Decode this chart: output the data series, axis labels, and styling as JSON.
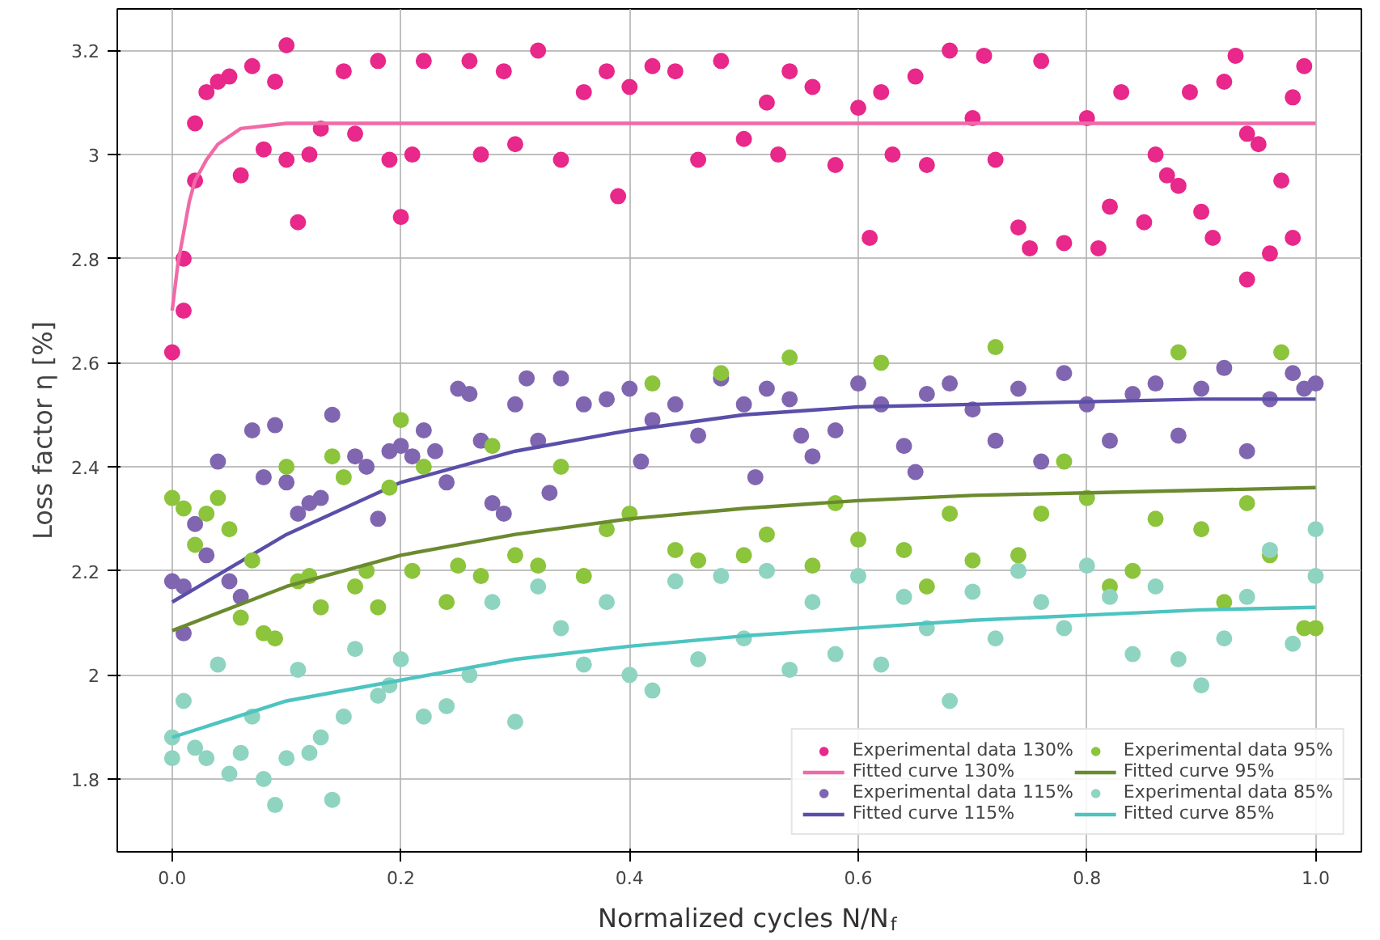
{
  "chart_data": {
    "type": "scatter",
    "xlabel": "Normalized cycles N/N$_{f}$",
    "ylabel": "Loss factor η [%]",
    "xlim": [
      -0.048,
      1.04
    ],
    "ylim": [
      1.66,
      3.28
    ],
    "xticks": [
      {
        "value": 0,
        "label": "0.0"
      },
      0.2,
      0.4,
      0.6,
      0.8,
      {
        "value": 1,
        "label": "1.0"
      }
    ],
    "yticks": [
      1.8,
      2.0,
      2.2,
      2.4,
      2.6,
      2.8,
      3.0,
      3.2
    ],
    "grid": true,
    "legend": "bottom right",
    "series": [
      {
        "name": "Experimental data 130%",
        "marker": "circle",
        "color": "#e8288a",
        "x": [
          0.0,
          0.01,
          0.01,
          0.02,
          0.02,
          0.03,
          0.04,
          0.05,
          0.06,
          0.07,
          0.08,
          0.09,
          0.1,
          0.1,
          0.11,
          0.12,
          0.13,
          0.15,
          0.16,
          0.18,
          0.19,
          0.2,
          0.21,
          0.22,
          0.26,
          0.27,
          0.29,
          0.3,
          0.32,
          0.34,
          0.36,
          0.38,
          0.39,
          0.4,
          0.42,
          0.44,
          0.46,
          0.48,
          0.5,
          0.52,
          0.53,
          0.54,
          0.56,
          0.58,
          0.6,
          0.61,
          0.62,
          0.63,
          0.65,
          0.66,
          0.68,
          0.7,
          0.71,
          0.72,
          0.74,
          0.75,
          0.76,
          0.78,
          0.8,
          0.81,
          0.82,
          0.83,
          0.85,
          0.86,
          0.87,
          0.88,
          0.89,
          0.9,
          0.91,
          0.92,
          0.93,
          0.94,
          0.95,
          0.96,
          0.97,
          0.98,
          0.99,
          0.98,
          0.94
        ],
        "values": [
          2.62,
          2.7,
          2.8,
          2.95,
          3.06,
          3.12,
          3.14,
          3.15,
          2.96,
          3.17,
          3.01,
          3.14,
          3.21,
          2.99,
          2.87,
          3.0,
          3.05,
          3.16,
          3.04,
          3.18,
          2.99,
          2.88,
          3.0,
          3.18,
          3.18,
          3.0,
          3.16,
          3.02,
          3.2,
          2.99,
          3.12,
          3.16,
          2.92,
          3.13,
          3.17,
          3.16,
          2.99,
          3.18,
          3.03,
          3.1,
          3.0,
          3.16,
          3.13,
          2.98,
          3.09,
          2.84,
          3.12,
          3.0,
          3.15,
          2.98,
          3.2,
          3.07,
          3.19,
          2.99,
          2.86,
          2.82,
          3.18,
          2.83,
          3.07,
          2.82,
          2.9,
          3.12,
          2.87,
          3.0,
          2.96,
          2.94,
          3.12,
          2.89,
          2.84,
          3.14,
          3.19,
          3.04,
          3.02,
          2.81,
          2.95,
          3.11,
          3.17,
          2.84,
          2.76
        ]
      },
      {
        "name": "Fitted curve 130%",
        "type": "line",
        "color": "#f06aa8",
        "x": [
          0.0,
          0.005,
          0.01,
          0.015,
          0.02,
          0.03,
          0.04,
          0.06,
          0.08,
          0.1,
          0.2,
          0.4,
          0.6,
          0.8,
          1.0
        ],
        "values": [
          2.7,
          2.79,
          2.85,
          2.91,
          2.95,
          2.99,
          3.02,
          3.05,
          3.055,
          3.06,
          3.06,
          3.06,
          3.06,
          3.06,
          3.06
        ]
      },
      {
        "name": "Experimental data 115%",
        "marker": "circle",
        "color": "#8066b0",
        "x": [
          0.0,
          0.01,
          0.01,
          0.02,
          0.03,
          0.04,
          0.05,
          0.06,
          0.07,
          0.08,
          0.09,
          0.1,
          0.11,
          0.12,
          0.13,
          0.14,
          0.16,
          0.17,
          0.18,
          0.19,
          0.2,
          0.21,
          0.22,
          0.23,
          0.24,
          0.25,
          0.26,
          0.27,
          0.28,
          0.29,
          0.3,
          0.31,
          0.32,
          0.33,
          0.34,
          0.36,
          0.38,
          0.4,
          0.41,
          0.42,
          0.44,
          0.46,
          0.48,
          0.5,
          0.51,
          0.52,
          0.54,
          0.55,
          0.56,
          0.58,
          0.6,
          0.62,
          0.64,
          0.65,
          0.66,
          0.68,
          0.7,
          0.72,
          0.74,
          0.76,
          0.78,
          0.8,
          0.82,
          0.84,
          0.86,
          0.88,
          0.9,
          0.92,
          0.94,
          0.96,
          0.98,
          0.99,
          1.0
        ],
        "values": [
          2.18,
          2.17,
          2.08,
          2.29,
          2.23,
          2.41,
          2.18,
          2.15,
          2.47,
          2.38,
          2.48,
          2.37,
          2.31,
          2.33,
          2.34,
          2.5,
          2.42,
          2.4,
          2.3,
          2.43,
          2.44,
          2.42,
          2.47,
          2.43,
          2.37,
          2.55,
          2.54,
          2.45,
          2.33,
          2.31,
          2.52,
          2.57,
          2.45,
          2.35,
          2.57,
          2.52,
          2.53,
          2.55,
          2.41,
          2.49,
          2.52,
          2.46,
          2.57,
          2.52,
          2.38,
          2.55,
          2.53,
          2.46,
          2.42,
          2.47,
          2.56,
          2.52,
          2.44,
          2.39,
          2.54,
          2.56,
          2.51,
          2.45,
          2.55,
          2.41,
          2.58,
          2.52,
          2.45,
          2.54,
          2.56,
          2.46,
          2.55,
          2.59,
          2.43,
          2.53,
          2.58,
          2.55,
          2.56
        ]
      },
      {
        "name": "Fitted curve 115%",
        "type": "line",
        "color": "#5a4fa8",
        "x": [
          0.0,
          0.1,
          0.2,
          0.3,
          0.4,
          0.5,
          0.6,
          0.7,
          0.8,
          0.9,
          1.0
        ],
        "values": [
          2.14,
          2.27,
          2.37,
          2.43,
          2.47,
          2.5,
          2.515,
          2.52,
          2.525,
          2.53,
          2.53
        ]
      },
      {
        "name": "Experimental data 95%",
        "marker": "circle",
        "color": "#8cc43c",
        "x": [
          0.0,
          0.01,
          0.02,
          0.03,
          0.04,
          0.05,
          0.06,
          0.07,
          0.08,
          0.09,
          0.1,
          0.11,
          0.12,
          0.13,
          0.14,
          0.15,
          0.16,
          0.17,
          0.18,
          0.19,
          0.2,
          0.21,
          0.22,
          0.24,
          0.25,
          0.27,
          0.28,
          0.3,
          0.32,
          0.34,
          0.36,
          0.38,
          0.4,
          0.42,
          0.44,
          0.46,
          0.48,
          0.5,
          0.52,
          0.54,
          0.56,
          0.58,
          0.6,
          0.62,
          0.64,
          0.66,
          0.68,
          0.7,
          0.72,
          0.74,
          0.76,
          0.78,
          0.8,
          0.82,
          0.84,
          0.86,
          0.88,
          0.9,
          0.92,
          0.94,
          0.96,
          0.97,
          0.99,
          1.0
        ],
        "values": [
          2.34,
          2.32,
          2.25,
          2.31,
          2.34,
          2.28,
          2.11,
          2.22,
          2.08,
          2.07,
          2.4,
          2.18,
          2.19,
          2.13,
          2.42,
          2.38,
          2.17,
          2.2,
          2.13,
          2.36,
          2.49,
          2.2,
          2.4,
          2.14,
          2.21,
          2.19,
          2.44,
          2.23,
          2.21,
          2.4,
          2.19,
          2.28,
          2.31,
          2.56,
          2.24,
          2.22,
          2.58,
          2.23,
          2.27,
          2.61,
          2.21,
          2.33,
          2.26,
          2.6,
          2.24,
          2.17,
          2.31,
          2.22,
          2.63,
          2.23,
          2.31,
          2.41,
          2.34,
          2.17,
          2.2,
          2.3,
          2.62,
          2.28,
          2.14,
          2.33,
          2.23,
          2.62,
          2.09,
          2.09
        ]
      },
      {
        "name": "Fitted curve 95%",
        "type": "line",
        "color": "#6b8a2f",
        "x": [
          0.0,
          0.1,
          0.2,
          0.3,
          0.4,
          0.5,
          0.6,
          0.7,
          0.8,
          0.9,
          1.0
        ],
        "values": [
          2.085,
          2.17,
          2.23,
          2.27,
          2.3,
          2.32,
          2.335,
          2.345,
          2.35,
          2.355,
          2.36
        ]
      },
      {
        "name": "Experimental data 85%",
        "marker": "circle",
        "color": "#8fd4c0",
        "x": [
          0.0,
          0.0,
          0.01,
          0.02,
          0.03,
          0.04,
          0.05,
          0.06,
          0.07,
          0.08,
          0.09,
          0.1,
          0.11,
          0.12,
          0.13,
          0.14,
          0.15,
          0.16,
          0.18,
          0.19,
          0.2,
          0.22,
          0.24,
          0.26,
          0.28,
          0.3,
          0.32,
          0.34,
          0.36,
          0.38,
          0.4,
          0.42,
          0.44,
          0.46,
          0.48,
          0.5,
          0.52,
          0.54,
          0.56,
          0.58,
          0.6,
          0.62,
          0.64,
          0.66,
          0.68,
          0.7,
          0.72,
          0.74,
          0.76,
          0.78,
          0.8,
          0.82,
          0.84,
          0.86,
          0.88,
          0.9,
          0.92,
          0.94,
          0.96,
          0.98,
          1.0,
          1.0
        ],
        "values": [
          1.88,
          1.84,
          1.95,
          1.86,
          1.84,
          2.02,
          1.81,
          1.85,
          1.92,
          1.8,
          1.75,
          1.84,
          2.01,
          1.85,
          1.88,
          1.76,
          1.92,
          2.05,
          1.96,
          1.98,
          2.03,
          1.92,
          1.94,
          2.0,
          2.14,
          1.91,
          2.17,
          2.09,
          2.02,
          2.14,
          2.0,
          1.97,
          2.18,
          2.03,
          2.19,
          2.07,
          2.2,
          2.01,
          2.14,
          2.04,
          2.19,
          2.02,
          2.15,
          2.09,
          1.95,
          2.16,
          2.07,
          2.2,
          2.14,
          2.09,
          2.21,
          2.15,
          2.04,
          2.17,
          2.03,
          1.98,
          2.07,
          2.15,
          2.24,
          2.06,
          2.28,
          2.19
        ]
      },
      {
        "name": "Fitted curve 85%",
        "type": "line",
        "color": "#4dc4c0",
        "x": [
          0.0,
          0.1,
          0.2,
          0.3,
          0.4,
          0.5,
          0.6,
          0.7,
          0.8,
          0.9,
          1.0
        ],
        "values": [
          1.88,
          1.95,
          1.99,
          2.03,
          2.055,
          2.075,
          2.09,
          2.105,
          2.115,
          2.125,
          2.13
        ]
      }
    ]
  }
}
